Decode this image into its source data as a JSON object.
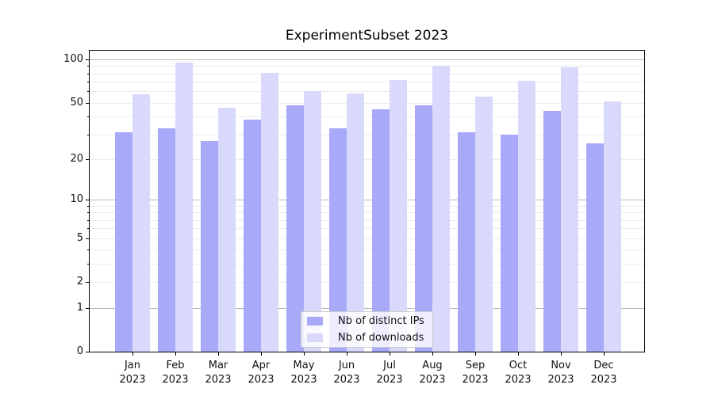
{
  "title": "ExperimentSubset 2023",
  "chart_data": {
    "type": "bar",
    "title": "ExperimentSubset 2023",
    "categories": [
      "Jan 2023",
      "Feb 2023",
      "Mar 2023",
      "Apr 2023",
      "May 2023",
      "Jun 2023",
      "Jul 2023",
      "Aug 2023",
      "Sep 2023",
      "Oct 2023",
      "Nov 2023",
      "Dec 2023"
    ],
    "x_tick_line1": [
      "Jan",
      "Feb",
      "Mar",
      "Apr",
      "May",
      "Jun",
      "Jul",
      "Aug",
      "Sep",
      "Oct",
      "Nov",
      "Dec"
    ],
    "x_tick_line2": "2023",
    "series": [
      {
        "name": "Nb of distinct IPs",
        "color": "#a9a9f9",
        "values": [
          31,
          33,
          27,
          38,
          48,
          33,
          45,
          48,
          31,
          30,
          44,
          26
        ]
      },
      {
        "name": "Nb of downloads",
        "color": "#d9d9fb",
        "values": [
          57,
          95,
          46,
          81,
          60,
          58,
          72,
          90,
          55,
          71,
          88,
          51
        ]
      }
    ],
    "xlabel": "",
    "ylabel": "",
    "y_axis": {
      "scale": "log1p",
      "ylim": [
        0,
        115
      ],
      "labeled_ticks": [
        0,
        1,
        2,
        5,
        10,
        20,
        50,
        100
      ],
      "major_grid": [
        1,
        10,
        100
      ],
      "minor_grid": [
        2,
        3,
        4,
        5,
        6,
        7,
        8,
        9,
        20,
        30,
        40,
        50,
        60,
        70,
        80,
        90
      ]
    },
    "legend": {
      "position": "lower center",
      "entries": [
        "Nb of distinct IPs",
        "Nb of downloads"
      ]
    },
    "grid_on": true
  }
}
